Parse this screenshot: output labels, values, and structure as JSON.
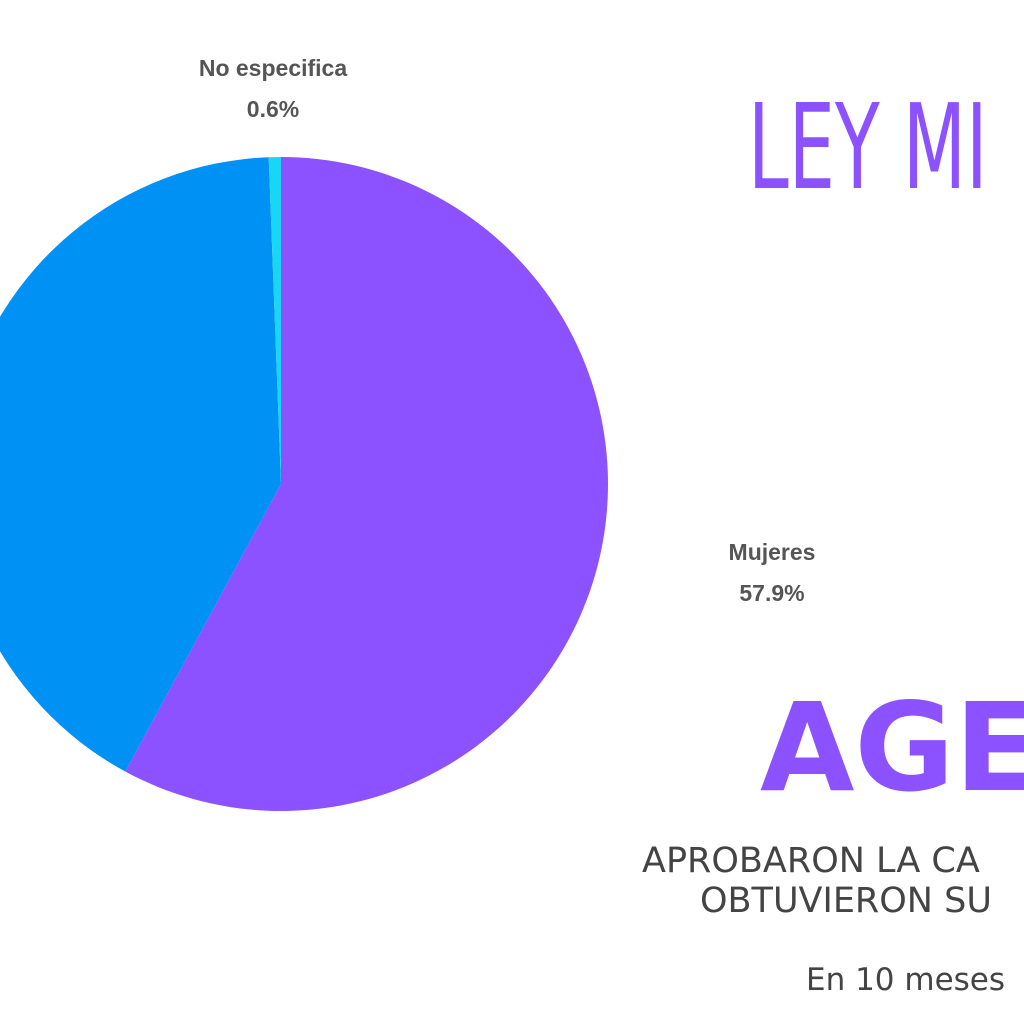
{
  "chart_data": {
    "type": "pie",
    "categories": [
      "Mujeres",
      null,
      "No especifica"
    ],
    "values": [
      57.9,
      41.5,
      0.6
    ],
    "value_labels": [
      "57.9%",
      null,
      "0.6%"
    ],
    "colors": [
      "#8c52ff",
      "#0091f5",
      "#1ad6f5"
    ]
  },
  "texts": {
    "title": "LEY MI",
    "headline": "AGE",
    "lines": [
      "APROBARON LA CA",
      "OBTUVIERON SU"
    ],
    "note": "En 10 meses"
  }
}
